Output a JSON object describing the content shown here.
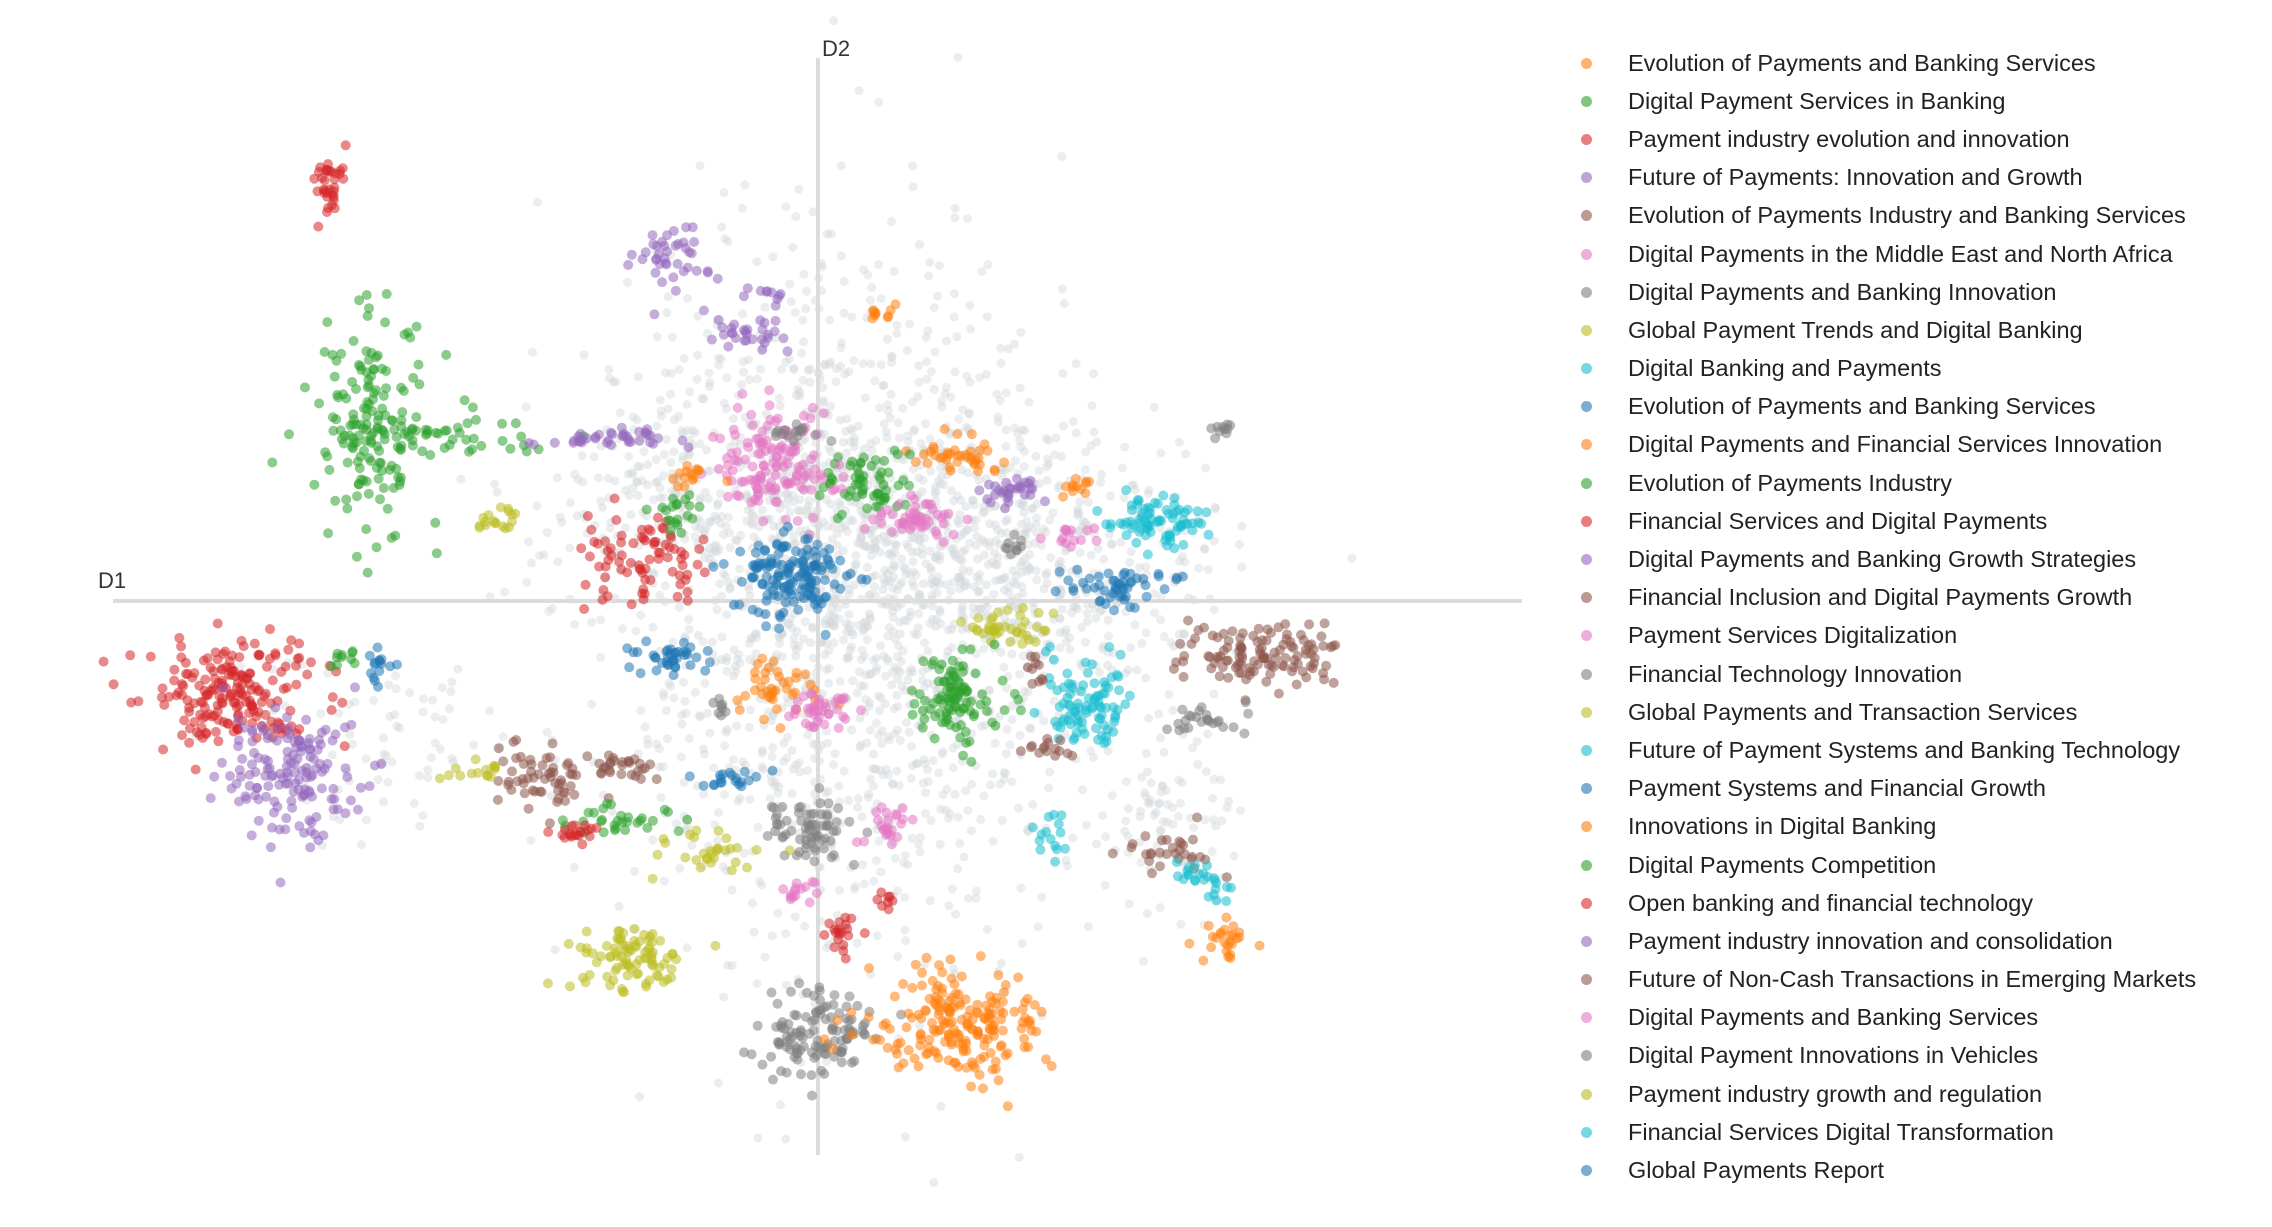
{
  "chart_data": {
    "type": "scatter",
    "title": "",
    "xlabel": "D1",
    "ylabel": "D2",
    "xlim": [
      -1.0,
      1.0
    ],
    "ylim": [
      -1.0,
      1.0
    ],
    "grid": false,
    "legend_position": "right",
    "background_color": "#d3d7da",
    "series": [
      {
        "name": "Evolution of Payments and Banking Services",
        "color": "#ff7f0e",
        "clusters": [
          {
            "x": 0.2,
            "y": 0.27,
            "sx": 0.03,
            "sy": 0.02,
            "n": 40
          },
          {
            "x": 0.09,
            "y": 0.53,
            "sx": 0.01,
            "sy": 0.01,
            "n": 10
          },
          {
            "x": -0.06,
            "y": -0.16,
            "sx": 0.03,
            "sy": 0.03,
            "n": 40
          }
        ]
      },
      {
        "name": "Digital Payment Services in Banking",
        "color": "#2ca02c",
        "clusters": [
          {
            "x": -0.63,
            "y": 0.33,
            "sx": 0.04,
            "sy": 0.1,
            "n": 150
          },
          {
            "x": -0.55,
            "y": 0.3,
            "sx": 0.08,
            "sy": 0.02,
            "n": 50
          },
          {
            "x": 0.07,
            "y": 0.22,
            "sx": 0.03,
            "sy": 0.03,
            "n": 60
          }
        ]
      },
      {
        "name": "Payment industry evolution and innovation",
        "color": "#d62728",
        "clusters": [
          {
            "x": -0.69,
            "y": 0.76,
            "sx": 0.015,
            "sy": 0.03,
            "n": 35
          },
          {
            "x": -0.83,
            "y": -0.17,
            "sx": 0.06,
            "sy": 0.05,
            "n": 200
          },
          {
            "x": -0.25,
            "y": 0.08,
            "sx": 0.04,
            "sy": 0.04,
            "n": 80
          }
        ]
      },
      {
        "name": "Future of Payments: Innovation and Growth",
        "color": "#9467bd",
        "clusters": [
          {
            "x": -0.75,
            "y": -0.32,
            "sx": 0.045,
            "sy": 0.06,
            "n": 150
          },
          {
            "x": -0.21,
            "y": 0.64,
            "sx": 0.03,
            "sy": 0.03,
            "n": 40
          },
          {
            "x": -0.09,
            "y": 0.49,
            "sx": 0.03,
            "sy": 0.02,
            "n": 30
          }
        ]
      },
      {
        "name": "Evolution of Payments Industry and Banking Services",
        "color": "#8c564b",
        "clusters": [
          {
            "x": 0.62,
            "y": -0.1,
            "sx": 0.06,
            "sy": 0.03,
            "n": 120
          },
          {
            "x": -0.39,
            "y": -0.32,
            "sx": 0.04,
            "sy": 0.03,
            "n": 60
          },
          {
            "x": 0.49,
            "y": -0.46,
            "sx": 0.03,
            "sy": 0.02,
            "n": 30
          }
        ]
      },
      {
        "name": "Digital Payments in the Middle East and North Africa",
        "color": "#e377c2",
        "clusters": [
          {
            "x": -0.06,
            "y": 0.25,
            "sx": 0.04,
            "sy": 0.05,
            "n": 140
          },
          {
            "x": 0.14,
            "y": 0.15,
            "sx": 0.03,
            "sy": 0.02,
            "n": 50
          }
        ]
      },
      {
        "name": "Digital Payments and Banking Innovation",
        "color": "#7f7f7f",
        "clusters": [
          {
            "x": -0.01,
            "y": -0.8,
            "sx": 0.04,
            "sy": 0.04,
            "n": 120
          },
          {
            "x": -0.01,
            "y": -0.42,
            "sx": 0.03,
            "sy": 0.03,
            "n": 70
          },
          {
            "x": 0.58,
            "y": 0.32,
            "sx": 0.01,
            "sy": 0.01,
            "n": 10
          }
        ]
      },
      {
        "name": "Global Payment Trends and Digital Banking",
        "color": "#bcbd22",
        "clusters": [
          {
            "x": -0.27,
            "y": -0.66,
            "sx": 0.04,
            "sy": 0.03,
            "n": 90
          },
          {
            "x": 0.27,
            "y": -0.05,
            "sx": 0.03,
            "sy": 0.02,
            "n": 40
          },
          {
            "x": -0.15,
            "y": -0.47,
            "sx": 0.04,
            "sy": 0.02,
            "n": 30
          }
        ]
      },
      {
        "name": "Digital Banking and Payments",
        "color": "#17becf",
        "clusters": [
          {
            "x": 0.38,
            "y": -0.2,
            "sx": 0.03,
            "sy": 0.04,
            "n": 90
          },
          {
            "x": 0.48,
            "y": 0.15,
            "sx": 0.04,
            "sy": 0.02,
            "n": 60
          },
          {
            "x": 0.53,
            "y": -0.5,
            "sx": 0.015,
            "sy": 0.015,
            "n": 15
          }
        ]
      },
      {
        "name": "Evolution of Payments and Banking Services",
        "color": "#1f77b4",
        "clusters": [
          {
            "x": -0.04,
            "y": 0.04,
            "sx": 0.04,
            "sy": 0.04,
            "n": 150
          },
          {
            "x": -0.21,
            "y": -0.1,
            "sx": 0.03,
            "sy": 0.02,
            "n": 40
          },
          {
            "x": 0.43,
            "y": 0.03,
            "sx": 0.05,
            "sy": 0.015,
            "n": 40
          }
        ]
      },
      {
        "name": "Digital Payments and Financial Services Innovation",
        "color": "#ff7f0e",
        "clusters": [
          {
            "x": 0.19,
            "y": -0.78,
            "sx": 0.06,
            "sy": 0.05,
            "n": 200
          },
          {
            "x": 0.57,
            "y": -0.62,
            "sx": 0.02,
            "sy": 0.02,
            "n": 25
          },
          {
            "x": 0.37,
            "y": 0.21,
            "sx": 0.01,
            "sy": 0.01,
            "n": 12
          }
        ]
      },
      {
        "name": "Evolution of Payments Industry",
        "color": "#2ca02c",
        "clusters": [
          {
            "x": 0.2,
            "y": -0.18,
            "sx": 0.03,
            "sy": 0.04,
            "n": 100
          },
          {
            "x": -0.28,
            "y": -0.4,
            "sx": 0.04,
            "sy": 0.015,
            "n": 30
          }
        ]
      },
      {
        "name": "Financial Services and Digital Payments",
        "color": "#d62728",
        "clusters": [
          {
            "x": 0.03,
            "y": -0.62,
            "sx": 0.015,
            "sy": 0.02,
            "n": 20
          },
          {
            "x": -0.34,
            "y": -0.42,
            "sx": 0.015,
            "sy": 0.01,
            "n": 10
          }
        ]
      },
      {
        "name": "Digital Payments and Banking Growth Strategies",
        "color": "#9467bd",
        "clusters": [
          {
            "x": -0.3,
            "y": 0.3,
            "sx": 0.05,
            "sy": 0.01,
            "n": 40
          },
          {
            "x": 0.28,
            "y": 0.21,
            "sx": 0.02,
            "sy": 0.015,
            "n": 20
          }
        ]
      },
      {
        "name": "Financial Inclusion and Digital Payments Growth",
        "color": "#8c564b",
        "clusters": [
          {
            "x": 0.32,
            "y": -0.27,
            "sx": 0.02,
            "sy": 0.01,
            "n": 15
          },
          {
            "x": -0.27,
            "y": -0.3,
            "sx": 0.02,
            "sy": 0.015,
            "n": 15
          }
        ]
      },
      {
        "name": "Payment Services Digitalization",
        "color": "#e377c2",
        "clusters": [
          {
            "x": 0.0,
            "y": -0.2,
            "sx": 0.03,
            "sy": 0.02,
            "n": 40
          },
          {
            "x": 0.1,
            "y": -0.41,
            "sx": 0.02,
            "sy": 0.02,
            "n": 25
          },
          {
            "x": -0.03,
            "y": -0.53,
            "sx": 0.02,
            "sy": 0.01,
            "n": 15
          }
        ]
      },
      {
        "name": "Financial Technology Innovation",
        "color": "#7f7f7f",
        "clusters": [
          {
            "x": 0.55,
            "y": -0.22,
            "sx": 0.03,
            "sy": 0.015,
            "n": 25
          },
          {
            "x": -0.14,
            "y": -0.19,
            "sx": 0.01,
            "sy": 0.01,
            "n": 8
          }
        ]
      },
      {
        "name": "Global Payments and Transaction Services",
        "color": "#bcbd22",
        "clusters": [
          {
            "x": -0.49,
            "y": -0.31,
            "sx": 0.03,
            "sy": 0.01,
            "n": 15
          },
          {
            "x": -0.44,
            "y": 0.15,
            "sx": 0.01,
            "sy": 0.01,
            "n": 8
          }
        ]
      },
      {
        "name": "Future of Payment Systems and Banking Technology",
        "color": "#17becf",
        "clusters": [
          {
            "x": 0.33,
            "y": -0.44,
            "sx": 0.01,
            "sy": 0.03,
            "n": 15
          }
        ]
      },
      {
        "name": "Payment Systems and Financial Growth",
        "color": "#1f77b4",
        "clusters": [
          {
            "x": -0.12,
            "y": -0.33,
            "sx": 0.03,
            "sy": 0.01,
            "n": 20
          },
          {
            "x": -0.62,
            "y": -0.13,
            "sx": 0.015,
            "sy": 0.015,
            "n": 15
          }
        ]
      },
      {
        "name": "Innovations in Digital Banking",
        "color": "#ff7f0e",
        "clusters": [
          {
            "x": -0.18,
            "y": 0.23,
            "sx": 0.02,
            "sy": 0.01,
            "n": 15
          }
        ]
      },
      {
        "name": "Digital Payments Competition",
        "color": "#2ca02c",
        "clusters": [
          {
            "x": -0.2,
            "y": 0.16,
            "sx": 0.02,
            "sy": 0.02,
            "n": 20
          },
          {
            "x": -0.67,
            "y": -0.11,
            "sx": 0.01,
            "sy": 0.015,
            "n": 10
          }
        ]
      },
      {
        "name": "Open banking and financial technology",
        "color": "#d62728",
        "clusters": [
          {
            "x": -0.34,
            "y": -0.42,
            "sx": 0.015,
            "sy": 0.01,
            "n": 10
          },
          {
            "x": 0.1,
            "y": -0.55,
            "sx": 0.01,
            "sy": 0.01,
            "n": 8
          }
        ]
      },
      {
        "name": "Payment industry innovation and consolidation",
        "color": "#9467bd",
        "clusters": [
          {
            "x": 0.27,
            "y": 0.19,
            "sx": 0.02,
            "sy": 0.01,
            "n": 10
          },
          {
            "x": -0.07,
            "y": 0.57,
            "sx": 0.02,
            "sy": 0.01,
            "n": 10
          }
        ]
      },
      {
        "name": "Future of Non-Cash Transactions in Emerging Markets",
        "color": "#8c564b",
        "clusters": [
          {
            "x": -0.27,
            "y": -0.31,
            "sx": 0.02,
            "sy": 0.01,
            "n": 12
          },
          {
            "x": 0.31,
            "y": -0.12,
            "sx": 0.01,
            "sy": 0.02,
            "n": 10
          }
        ]
      },
      {
        "name": "Digital Payments and Banking Services",
        "color": "#e377c2",
        "clusters": [
          {
            "x": 0.35,
            "y": 0.12,
            "sx": 0.02,
            "sy": 0.01,
            "n": 15
          }
        ]
      },
      {
        "name": "Digital Payment Innovations in Vehicles",
        "color": "#7f7f7f",
        "clusters": [
          {
            "x": -0.03,
            "y": 0.31,
            "sx": 0.02,
            "sy": 0.01,
            "n": 15
          },
          {
            "x": 0.28,
            "y": 0.1,
            "sx": 0.01,
            "sy": 0.02,
            "n": 10
          }
        ]
      },
      {
        "name": "Payment industry growth and regulation",
        "color": "#bcbd22",
        "clusters": [
          {
            "x": -0.46,
            "y": 0.15,
            "sx": 0.01,
            "sy": 0.01,
            "n": 10
          }
        ]
      },
      {
        "name": "Financial Services Digital Transformation",
        "color": "#17becf",
        "clusters": [
          {
            "x": 0.5,
            "y": 0.12,
            "sx": 0.02,
            "sy": 0.02,
            "n": 20
          },
          {
            "x": 0.57,
            "y": -0.53,
            "sx": 0.01,
            "sy": 0.01,
            "n": 10
          }
        ]
      },
      {
        "name": "Global Payments Report",
        "color": "#1f77b4",
        "clusters": [
          {
            "x": 0.42,
            "y": 0.0,
            "sx": 0.015,
            "sy": 0.01,
            "n": 12
          }
        ]
      }
    ]
  }
}
